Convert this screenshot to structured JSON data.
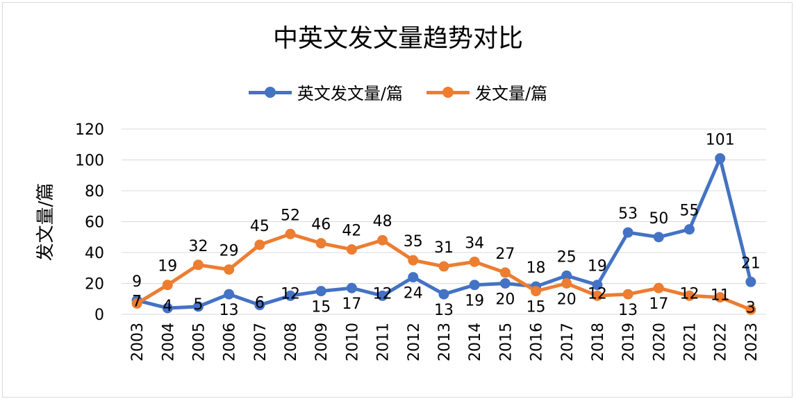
{
  "chart_data": {
    "type": "line",
    "title": "中英文发文量趋势对比",
    "xlabel": "",
    "ylabel": "发文量/篇",
    "ylim": [
      0,
      120
    ],
    "yticks": [
      0,
      20,
      40,
      60,
      80,
      100,
      120
    ],
    "legend_position": "top-center",
    "grid": true,
    "categories": [
      "2003",
      "2004",
      "2005",
      "2006",
      "2007",
      "2008",
      "2009",
      "2010",
      "2011",
      "2012",
      "2013",
      "2014",
      "2015",
      "2016",
      "2017",
      "2018",
      "2019",
      "2020",
      "2021",
      "2022",
      "2023"
    ],
    "series": [
      {
        "name": "英文发文量/篇",
        "color": "#4472C4",
        "values": [
          9,
          4,
          5,
          13,
          6,
          12,
          15,
          17,
          12,
          24,
          13,
          19,
          20,
          18,
          25,
          19,
          53,
          50,
          55,
          101,
          21
        ]
      },
      {
        "name": "发文量/篇",
        "color": "#ED7D31",
        "values": [
          7,
          19,
          32,
          29,
          45,
          52,
          46,
          42,
          48,
          35,
          31,
          34,
          27,
          15,
          20,
          12,
          13,
          17,
          12,
          11,
          3
        ]
      }
    ]
  }
}
